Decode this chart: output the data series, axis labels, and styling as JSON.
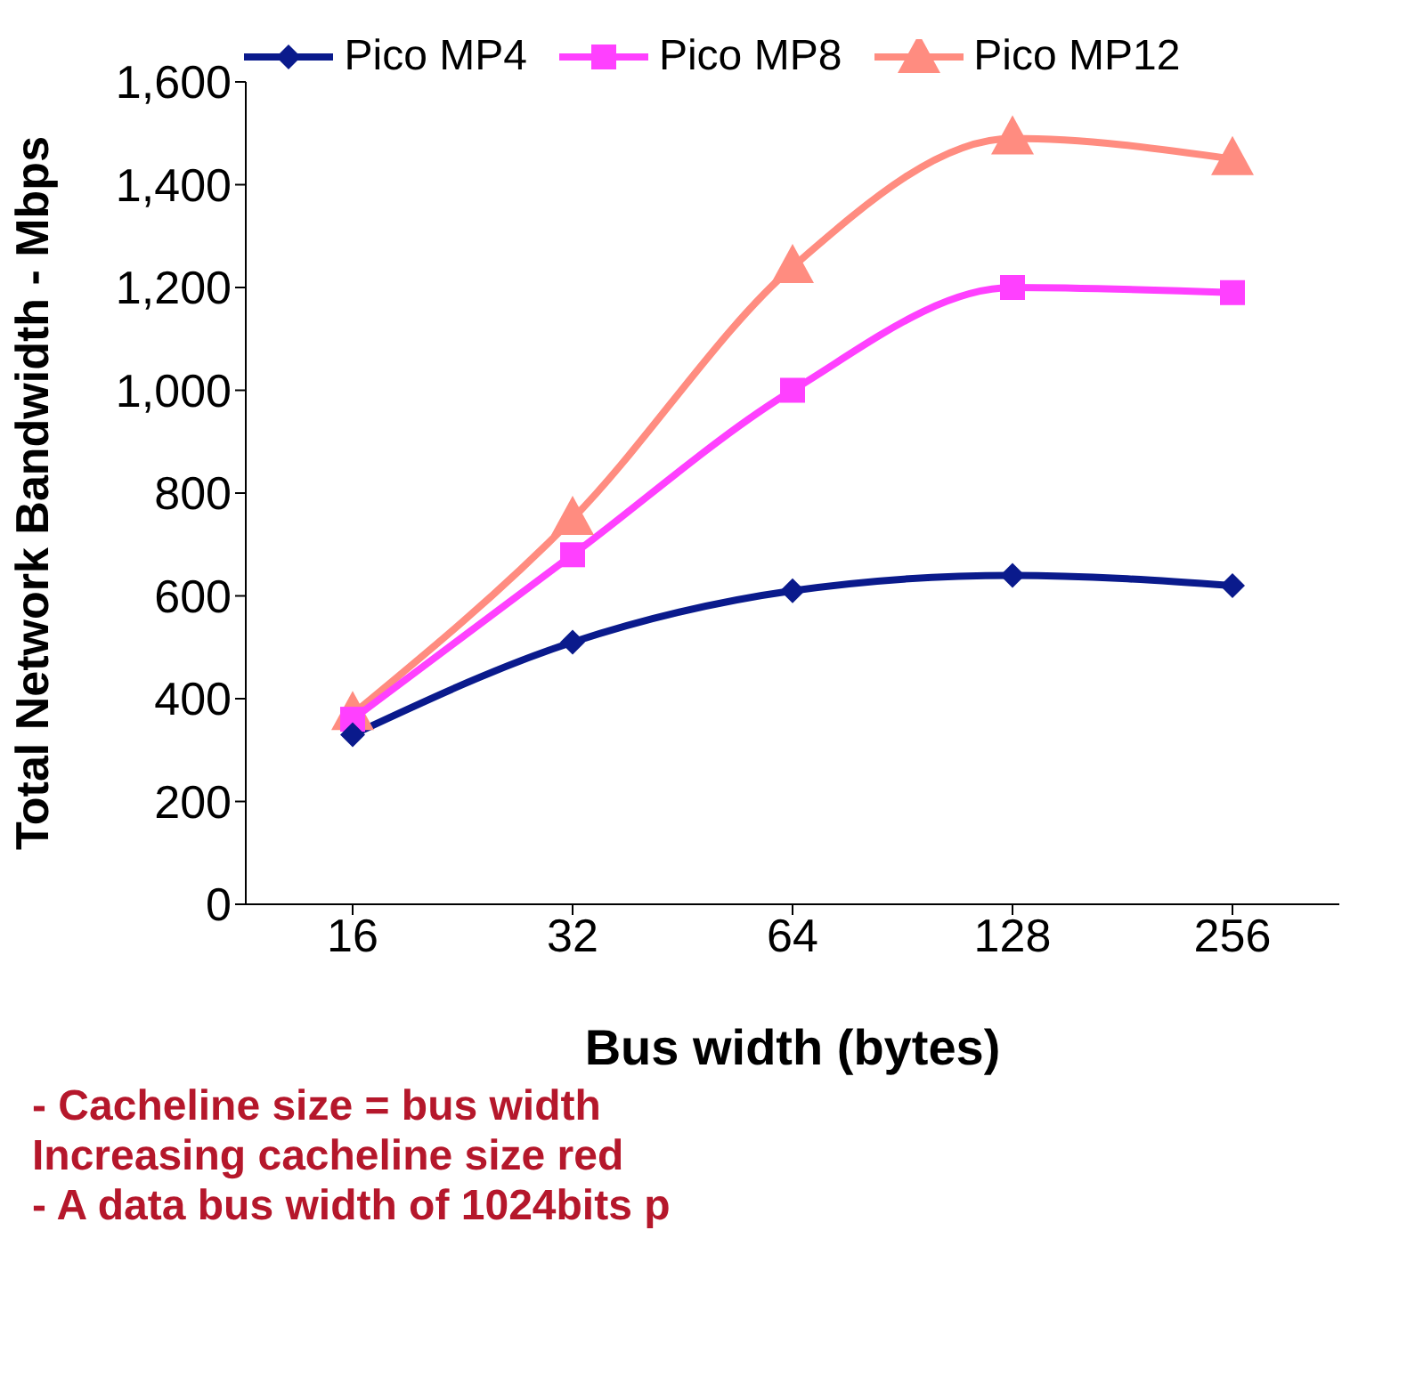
{
  "chart_data": {
    "type": "line",
    "xlabel": "Bus width (bytes)",
    "ylabel": "Total Network Bandwidth - Mbps",
    "categories": [
      "16",
      "32",
      "64",
      "128",
      "256"
    ],
    "series": [
      {
        "name": "Pico MP4",
        "color": "#0a1a8c",
        "marker": "diamond",
        "values": [
          330,
          510,
          610,
          640,
          620
        ]
      },
      {
        "name": "Pico MP8",
        "color": "#ff40ff",
        "marker": "square",
        "values": [
          360,
          680,
          1000,
          1200,
          1190
        ]
      },
      {
        "name": "Pico MP12",
        "color": "#ff8c80",
        "marker": "triangle",
        "values": [
          370,
          750,
          1240,
          1490,
          1450
        ]
      }
    ],
    "ylim": [
      0,
      1600
    ],
    "yticks": [
      0,
      200,
      400,
      600,
      800,
      {
        "value": 1000,
        "label": "1,000"
      },
      {
        "value": 1200,
        "label": "1,200"
      },
      {
        "value": 1400,
        "label": "1,400"
      },
      {
        "value": 1600,
        "label": "1,600"
      }
    ],
    "grid": false,
    "legend": "top",
    "annotations": [
      "- Cacheline size = bus width",
      "Increasing cacheline size red",
      "- A data bus width of 1024bits p"
    ]
  }
}
